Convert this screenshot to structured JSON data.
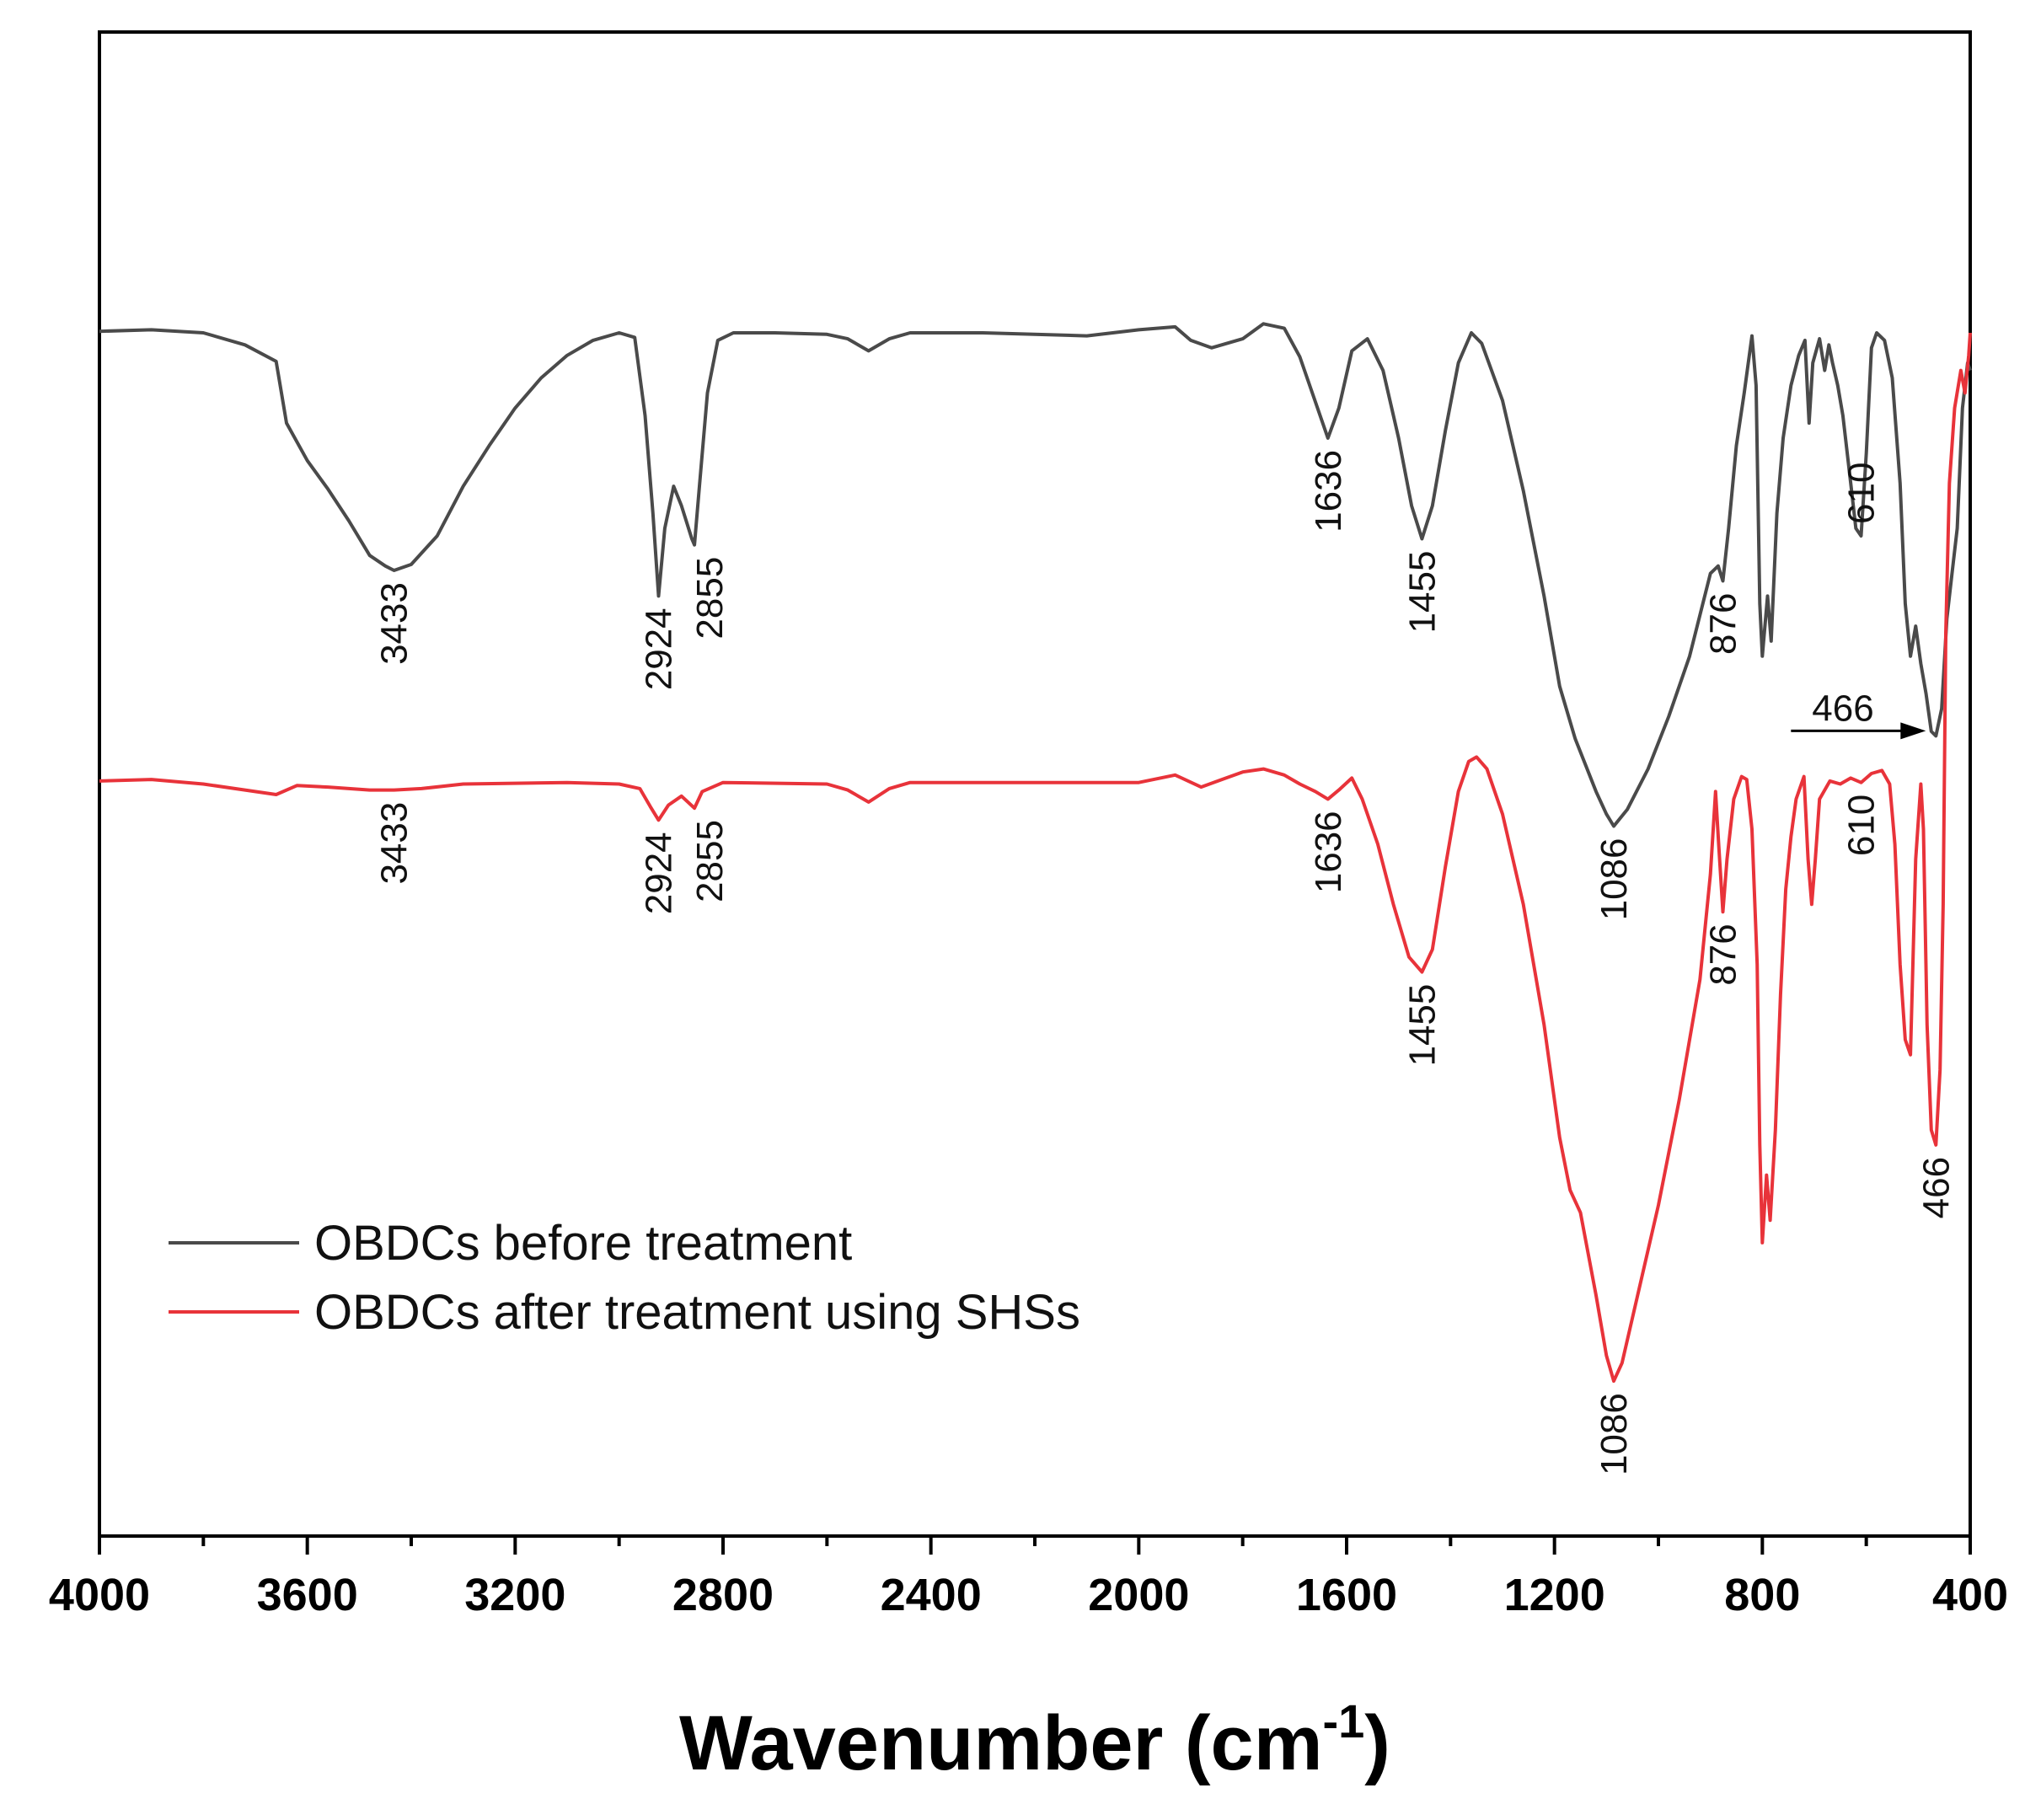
{
  "chart_data": {
    "type": "line",
    "title": "",
    "xlabel": "Wavenumber (cm",
    "xlabel_sup": "-1",
    "xlabel_close": ")",
    "ylabel": "",
    "xlim": [
      4000,
      400
    ],
    "ylim": [
      0,
      100
    ],
    "x_ticks": [
      4000,
      3600,
      3200,
      2800,
      2400,
      2000,
      1600,
      1200,
      800,
      400
    ],
    "x_minor_step": 200,
    "series": [
      {
        "name": "OBDCs before treatment",
        "color": "#4a4a4a",
        "points": [
          [
            4000,
            80.1
          ],
          [
            3900,
            80.2
          ],
          [
            3800,
            80.0
          ],
          [
            3720,
            79.2
          ],
          [
            3660,
            78.1
          ],
          [
            3640,
            74.0
          ],
          [
            3600,
            71.5
          ],
          [
            3560,
            69.6
          ],
          [
            3520,
            67.5
          ],
          [
            3480,
            65.2
          ],
          [
            3450,
            64.5
          ],
          [
            3433,
            64.2
          ],
          [
            3400,
            64.6
          ],
          [
            3350,
            66.5
          ],
          [
            3300,
            69.8
          ],
          [
            3250,
            72.5
          ],
          [
            3200,
            75.0
          ],
          [
            3150,
            77.0
          ],
          [
            3100,
            78.5
          ],
          [
            3050,
            79.5
          ],
          [
            3000,
            80.0
          ],
          [
            2970,
            79.7
          ],
          [
            2950,
            74.5
          ],
          [
            2935,
            68.0
          ],
          [
            2924,
            62.5
          ],
          [
            2912,
            67.0
          ],
          [
            2895,
            69.8
          ],
          [
            2880,
            68.5
          ],
          [
            2860,
            66.3
          ],
          [
            2855,
            65.9
          ],
          [
            2845,
            70.0
          ],
          [
            2830,
            76.0
          ],
          [
            2810,
            79.5
          ],
          [
            2780,
            80.0
          ],
          [
            2700,
            80.0
          ],
          [
            2600,
            79.9
          ],
          [
            2560,
            79.6
          ],
          [
            2520,
            78.8
          ],
          [
            2480,
            79.6
          ],
          [
            2440,
            80.0
          ],
          [
            2300,
            80.0
          ],
          [
            2100,
            79.8
          ],
          [
            2000,
            80.2
          ],
          [
            1930,
            80.4
          ],
          [
            1900,
            79.5
          ],
          [
            1860,
            79.0
          ],
          [
            1800,
            79.6
          ],
          [
            1760,
            80.6
          ],
          [
            1720,
            80.3
          ],
          [
            1690,
            78.4
          ],
          [
            1660,
            75.4
          ],
          [
            1636,
            73.0
          ],
          [
            1615,
            75.0
          ],
          [
            1590,
            78.8
          ],
          [
            1560,
            79.6
          ],
          [
            1530,
            77.5
          ],
          [
            1500,
            73.0
          ],
          [
            1475,
            68.5
          ],
          [
            1455,
            66.3
          ],
          [
            1435,
            68.5
          ],
          [
            1410,
            73.5
          ],
          [
            1385,
            78.0
          ],
          [
            1360,
            80.0
          ],
          [
            1340,
            79.3
          ],
          [
            1300,
            75.5
          ],
          [
            1260,
            69.5
          ],
          [
            1220,
            62.5
          ],
          [
            1190,
            56.5
          ],
          [
            1160,
            53.0
          ],
          [
            1120,
            49.5
          ],
          [
            1100,
            48.0
          ],
          [
            1086,
            47.2
          ],
          [
            1060,
            48.3
          ],
          [
            1020,
            51.0
          ],
          [
            980,
            54.5
          ],
          [
            940,
            58.5
          ],
          [
            900,
            64.0
          ],
          [
            885,
            64.5
          ],
          [
            876,
            63.5
          ],
          [
            865,
            67.0
          ],
          [
            850,
            72.5
          ],
          [
            835,
            76.0
          ],
          [
            820,
            79.8
          ],
          [
            812,
            76.5
          ],
          [
            805,
            62.0
          ],
          [
            800,
            58.5
          ],
          [
            790,
            62.5
          ],
          [
            783,
            59.5
          ],
          [
            772,
            68.0
          ],
          [
            760,
            73.0
          ],
          [
            745,
            76.5
          ],
          [
            730,
            78.5
          ],
          [
            718,
            79.5
          ],
          [
            710,
            74.0
          ],
          [
            703,
            78.0
          ],
          [
            690,
            79.6
          ],
          [
            680,
            77.5
          ],
          [
            672,
            79.2
          ],
          [
            665,
            78.0
          ],
          [
            655,
            76.5
          ],
          [
            645,
            74.5
          ],
          [
            630,
            70.0
          ],
          [
            620,
            67.0
          ],
          [
            610,
            66.5
          ],
          [
            600,
            72.0
          ],
          [
            590,
            79.0
          ],
          [
            580,
            80.0
          ],
          [
            565,
            79.5
          ],
          [
            550,
            77.0
          ],
          [
            535,
            70.0
          ],
          [
            525,
            62.0
          ],
          [
            515,
            58.5
          ],
          [
            505,
            60.5
          ],
          [
            495,
            58.0
          ],
          [
            485,
            56.0
          ],
          [
            475,
            53.5
          ],
          [
            466,
            53.2
          ],
          [
            455,
            55.0
          ],
          [
            445,
            61.0
          ],
          [
            435,
            64.0
          ],
          [
            425,
            67.0
          ],
          [
            415,
            75.0
          ],
          [
            405,
            78.0
          ],
          [
            400,
            77.5
          ]
        ]
      },
      {
        "name": "OBDCs after treatment using SHSs",
        "color": "#e8333a",
        "points": [
          [
            4000,
            50.2
          ],
          [
            3900,
            50.3
          ],
          [
            3800,
            50.0
          ],
          [
            3720,
            49.6
          ],
          [
            3660,
            49.3
          ],
          [
            3620,
            49.9
          ],
          [
            3560,
            49.8
          ],
          [
            3480,
            49.6
          ],
          [
            3433,
            49.6
          ],
          [
            3380,
            49.7
          ],
          [
            3300,
            50.0
          ],
          [
            3100,
            50.1
          ],
          [
            3000,
            50.0
          ],
          [
            2960,
            49.7
          ],
          [
            2940,
            48.5
          ],
          [
            2924,
            47.6
          ],
          [
            2905,
            48.6
          ],
          [
            2880,
            49.2
          ],
          [
            2855,
            48.4
          ],
          [
            2840,
            49.5
          ],
          [
            2800,
            50.1
          ],
          [
            2600,
            50.0
          ],
          [
            2560,
            49.6
          ],
          [
            2520,
            48.8
          ],
          [
            2480,
            49.7
          ],
          [
            2440,
            50.1
          ],
          [
            2200,
            50.1
          ],
          [
            2000,
            50.1
          ],
          [
            1930,
            50.6
          ],
          [
            1880,
            49.8
          ],
          [
            1840,
            50.3
          ],
          [
            1800,
            50.8
          ],
          [
            1760,
            51.0
          ],
          [
            1720,
            50.6
          ],
          [
            1690,
            50.0
          ],
          [
            1660,
            49.5
          ],
          [
            1636,
            49.0
          ],
          [
            1615,
            49.6
          ],
          [
            1590,
            50.4
          ],
          [
            1570,
            49.0
          ],
          [
            1540,
            46.0
          ],
          [
            1510,
            42.0
          ],
          [
            1480,
            38.5
          ],
          [
            1455,
            37.5
          ],
          [
            1435,
            39.0
          ],
          [
            1410,
            44.5
          ],
          [
            1385,
            49.5
          ],
          [
            1365,
            51.5
          ],
          [
            1350,
            51.8
          ],
          [
            1330,
            51.0
          ],
          [
            1300,
            48.0
          ],
          [
            1260,
            42.0
          ],
          [
            1220,
            34.0
          ],
          [
            1190,
            26.5
          ],
          [
            1170,
            23.0
          ],
          [
            1150,
            21.5
          ],
          [
            1120,
            16.0
          ],
          [
            1100,
            12.0
          ],
          [
            1086,
            10.3
          ],
          [
            1070,
            11.5
          ],
          [
            1040,
            16.0
          ],
          [
            1000,
            22.0
          ],
          [
            960,
            29.0
          ],
          [
            920,
            37.0
          ],
          [
            900,
            44.0
          ],
          [
            890,
            49.5
          ],
          [
            884,
            46.0
          ],
          [
            876,
            41.5
          ],
          [
            868,
            45.0
          ],
          [
            855,
            49.0
          ],
          [
            840,
            50.5
          ],
          [
            830,
            50.3
          ],
          [
            820,
            47.0
          ],
          [
            810,
            38.0
          ],
          [
            805,
            26.0
          ],
          [
            800,
            19.5
          ],
          [
            792,
            24.0
          ],
          [
            785,
            21.0
          ],
          [
            775,
            27.0
          ],
          [
            765,
            36.0
          ],
          [
            755,
            43.0
          ],
          [
            745,
            46.5
          ],
          [
            735,
            49.0
          ],
          [
            720,
            50.5
          ],
          [
            712,
            45.0
          ],
          [
            705,
            42.0
          ],
          [
            698,
            45.0
          ],
          [
            690,
            49.0
          ],
          [
            670,
            50.2
          ],
          [
            650,
            50.0
          ],
          [
            630,
            50.4
          ],
          [
            610,
            50.1
          ],
          [
            590,
            50.7
          ],
          [
            570,
            50.9
          ],
          [
            555,
            50.0
          ],
          [
            545,
            46.0
          ],
          [
            535,
            38.0
          ],
          [
            525,
            33.0
          ],
          [
            515,
            32.0
          ],
          [
            505,
            45.0
          ],
          [
            495,
            50.0
          ],
          [
            490,
            47.0
          ],
          [
            483,
            34.0
          ],
          [
            475,
            27.0
          ],
          [
            466,
            26.0
          ],
          [
            458,
            31.0
          ],
          [
            452,
            42.0
          ],
          [
            447,
            60.0
          ],
          [
            440,
            70.0
          ],
          [
            430,
            75.0
          ],
          [
            418,
            77.5
          ],
          [
            410,
            76.0
          ],
          [
            403,
            78.5
          ],
          [
            400,
            80.0
          ]
        ]
      }
    ],
    "annotations": [
      {
        "series": 0,
        "x": 3433,
        "y": 64.2,
        "text": "3433",
        "side": "below"
      },
      {
        "series": 0,
        "x": 2924,
        "y": 62.5,
        "text": "2924",
        "side": "below"
      },
      {
        "series": 0,
        "x": 2855,
        "y": 65.9,
        "text": "2855",
        "side": "below",
        "nudge": 18
      },
      {
        "series": 0,
        "x": 1636,
        "y": 73.0,
        "text": "1636",
        "side": "below"
      },
      {
        "series": 0,
        "x": 1455,
        "y": 66.3,
        "text": "1455",
        "side": "below"
      },
      {
        "series": 0,
        "x": 1086,
        "y": 47.2,
        "text": "1086",
        "side": "below"
      },
      {
        "series": 0,
        "x": 876,
        "y": 63.5,
        "text": "876",
        "side": "below"
      },
      {
        "series": 0,
        "x": 610,
        "y": 66.5,
        "text": "610",
        "side": "above"
      },
      {
        "series": 0,
        "x": 466,
        "y": 53.2,
        "text": "466",
        "side": "arrow"
      },
      {
        "series": 1,
        "x": 3433,
        "y": 49.6,
        "text": "3433",
        "side": "below"
      },
      {
        "series": 1,
        "x": 2924,
        "y": 47.6,
        "text": "2924",
        "side": "below"
      },
      {
        "series": 1,
        "x": 2855,
        "y": 48.4,
        "text": "2855",
        "side": "below",
        "nudge": 18
      },
      {
        "series": 1,
        "x": 1636,
        "y": 49.0,
        "text": "1636",
        "side": "below"
      },
      {
        "series": 1,
        "x": 1455,
        "y": 37.5,
        "text": "1455",
        "side": "below"
      },
      {
        "series": 1,
        "x": 1086,
        "y": 10.3,
        "text": "1086",
        "side": "below"
      },
      {
        "series": 1,
        "x": 876,
        "y": 41.5,
        "text": "876",
        "side": "below"
      },
      {
        "series": 1,
        "x": 610,
        "y": 50.1,
        "text": "610",
        "side": "below"
      },
      {
        "series": 1,
        "x": 466,
        "y": 26.0,
        "text": "466",
        "side": "below"
      }
    ],
    "legend": {
      "position": "bottom-left",
      "entries": [
        "OBDCs before treatment",
        "OBDCs after treatment using SHSs"
      ]
    },
    "grid": false
  }
}
